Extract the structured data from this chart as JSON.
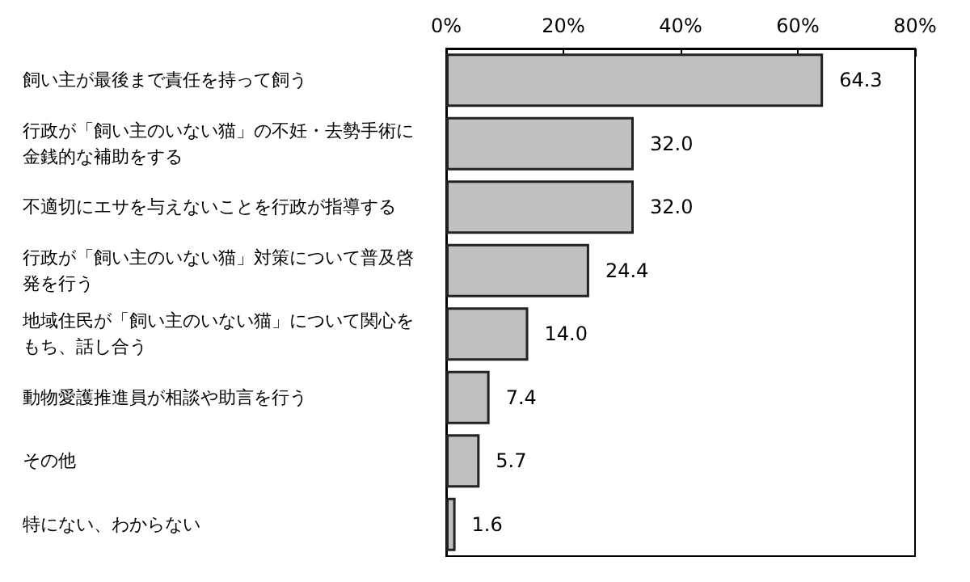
{
  "chart_data": {
    "type": "bar",
    "orientation": "horizontal",
    "categories": [
      "飼い主が最後まで責任を持って飼う",
      "行政が「飼い主のいない猫」の不妊・去勢手術に金銭的な補助をする",
      "不適切にエサを与えないことを行政が指導する",
      "行政が「飼い主のいない猫」対策について普及啓発を行う",
      "地域住民が「飼い主のいない猫」について関心をもち、話し合う",
      "動物愛護推進員が相談や助言を行う",
      "その他",
      "特にない、わからない"
    ],
    "values": [
      64.3,
      32.0,
      32.0,
      24.4,
      14.0,
      7.4,
      5.7,
      1.6
    ],
    "value_labels": [
      "64.3",
      "32.0",
      "32.0",
      "24.4",
      "14.0",
      "7.4",
      "5.7",
      "1.6"
    ],
    "color": "#c0c0c0",
    "xlim": [
      0,
      80
    ],
    "xticks": [
      {
        "value": 0,
        "label": "0%"
      },
      {
        "value": 20,
        "label": "20%"
      },
      {
        "value": 40,
        "label": "40%"
      },
      {
        "value": 60,
        "label": "60%"
      },
      {
        "value": 80,
        "label": "80%"
      }
    ],
    "grid": false
  }
}
